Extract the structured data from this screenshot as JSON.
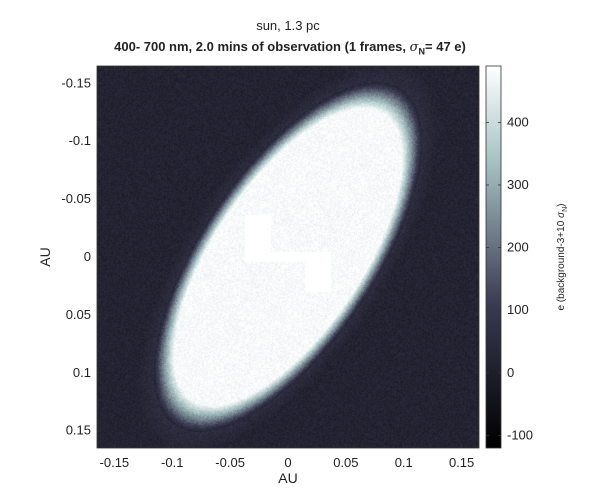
{
  "chart_data": {
    "type": "heatmap",
    "title": "sun, 1.3 pc",
    "subtitle_prefix": "400- 700 nm, 2.0 mins of observation (1 frames, ",
    "subtitle_symbol": "σ",
    "subtitle_subscript": "N",
    "subtitle_suffix": "= 47 e)",
    "xlabel": "AU",
    "ylabel": "AU",
    "xlim": [
      -0.165,
      0.165
    ],
    "ylim": [
      -0.165,
      0.165
    ],
    "x_ticks": [
      -0.15,
      -0.1,
      -0.05,
      0,
      0.05,
      0.1,
      0.15
    ],
    "x_tick_labels": [
      "-0.15",
      "-0.1",
      "-0.05",
      "0",
      "0.05",
      "0.1",
      "0.15"
    ],
    "y_ticks": [
      -0.15,
      -0.1,
      -0.05,
      0,
      0.05,
      0.1,
      0.15
    ],
    "y_tick_labels": [
      "-0.15",
      "-0.1",
      "-0.05",
      "0",
      "0.05",
      "0.1",
      "0.15"
    ],
    "y_reversed": true,
    "colorbar": {
      "label_prefix": "e (background-3+10 ",
      "label_symbol": "σ",
      "label_subscript": "N",
      "label_suffix": ")",
      "range": [
        -120,
        490
      ],
      "ticks": [
        -100,
        0,
        100,
        200,
        300,
        400
      ],
      "tick_labels": [
        "-100",
        "0",
        "100",
        "200",
        "300",
        "400"
      ],
      "colormap": "bone"
    },
    "background_value": 20,
    "ellipse": {
      "center": [
        0.0,
        0.0
      ],
      "semi_major": 0.175,
      "semi_minor": 0.075,
      "angle_deg": 56,
      "peak_value": 480
    },
    "masked_regions": [
      {
        "x": [
          -0.037,
          -0.015
        ],
        "y": [
          -0.036,
          -0.004
        ]
      },
      {
        "x": [
          -0.037,
          0.037
        ],
        "y": [
          -0.004,
          0.004
        ]
      },
      {
        "x": [
          0.015,
          0.037
        ],
        "y": [
          0.004,
          0.03
        ]
      }
    ]
  }
}
